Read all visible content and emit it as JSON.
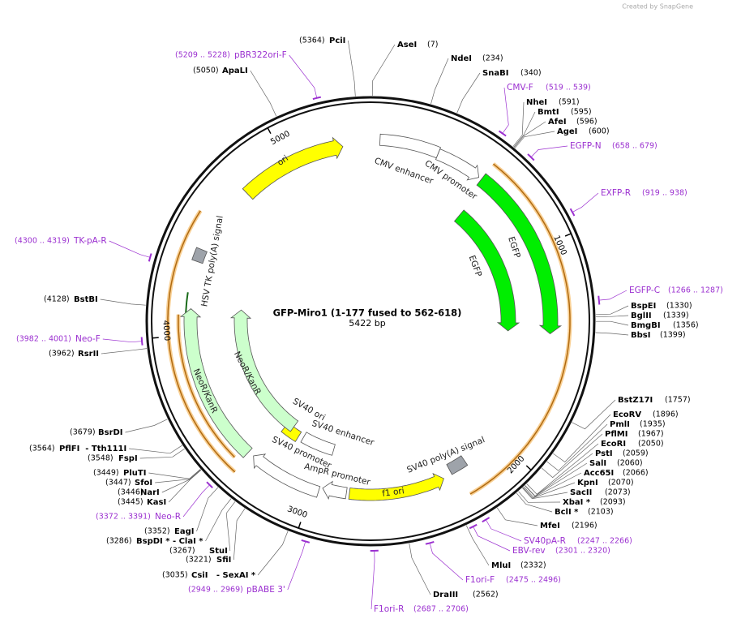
{
  "header": {
    "watermark": "Created by SnapGene"
  },
  "map": {
    "name": "GFP-Miro1 (1-177 fused to 562-618)",
    "length": "5422 bp",
    "ticks": [
      1000,
      2000,
      3000,
      4000,
      5000
    ],
    "features": [
      {
        "label": "ori"
      },
      {
        "label": "CMV enhancer"
      },
      {
        "label": "CMV promoter"
      },
      {
        "label": "EGFP"
      },
      {
        "label": "EGFP"
      },
      {
        "label": "f1 ori"
      },
      {
        "label": "SV40 poly(A) signal"
      },
      {
        "label": "SV40 ori"
      },
      {
        "label": "SV40 enhancer"
      },
      {
        "label": "SV40 promoter"
      },
      {
        "label": "AmpR promoter"
      },
      {
        "label": "HSV TK poly(A) signal"
      },
      {
        "label": "NeoR/KanR"
      },
      {
        "label": "NeoR/KanR"
      }
    ],
    "sites": [
      {
        "name": "PciI",
        "position": "(5364)"
      },
      {
        "name": "AseI",
        "position": "(7)"
      },
      {
        "name": "NdeI",
        "position": "(234)"
      },
      {
        "name": "SnaBI",
        "position": "(340)"
      },
      {
        "name": "NheI",
        "position": "(591)"
      },
      {
        "name": "BmtI",
        "position": "(595)"
      },
      {
        "name": "AfeI",
        "position": "(596)"
      },
      {
        "name": "AgeI",
        "position": "(600)"
      },
      {
        "name": "BspEI",
        "position": "(1330)"
      },
      {
        "name": "BglII",
        "position": "(1339)"
      },
      {
        "name": "BmgBI",
        "position": "(1356)"
      },
      {
        "name": "BbsI",
        "position": "(1399)"
      },
      {
        "name": "BstZ17I",
        "position": "(1757)"
      },
      {
        "name": "EcoRV",
        "position": "(1896)"
      },
      {
        "name": "PmlI",
        "position": "(1935)"
      },
      {
        "name": "PflMI",
        "position": "(1967)"
      },
      {
        "name": "EcoRI",
        "position": "(2050)"
      },
      {
        "name": "PstI",
        "position": "(2059)"
      },
      {
        "name": "SalI",
        "position": "(2060)"
      },
      {
        "name": "Acc65I",
        "position": "(2066)"
      },
      {
        "name": "KpnI",
        "position": "(2070)"
      },
      {
        "name": "SacII",
        "position": "(2073)"
      },
      {
        "name": "XbaI *",
        "position": "(2093)"
      },
      {
        "name": "BclI *",
        "position": "(2103)"
      },
      {
        "name": "MfeI",
        "position": "(2196)"
      },
      {
        "name": "MluI",
        "position": "(2332)"
      },
      {
        "name": "DraIII",
        "position": "(2562)"
      },
      {
        "name": "CsiI   - SexAI *",
        "position": "(3035)"
      },
      {
        "name": "SfiI",
        "position": "(3221)"
      },
      {
        "name": "StuI",
        "position": "(3267)"
      },
      {
        "name": "BspDI * - ClaI *",
        "position": "(3286)"
      },
      {
        "name": "EagI",
        "position": "(3352)"
      },
      {
        "name": "KasI",
        "position": "(3445)"
      },
      {
        "name": "NarI",
        "position": "(3446)"
      },
      {
        "name": "SfoI",
        "position": "(3447)"
      },
      {
        "name": "PluTI",
        "position": "(3449)"
      },
      {
        "name": "FspI",
        "position": "(3548)"
      },
      {
        "name": "PflFI  - Tth111I",
        "position": "(3564)"
      },
      {
        "name": "BsrDI",
        "position": "(3679)"
      },
      {
        "name": "RsrII",
        "position": "(3962)"
      },
      {
        "name": "BstBI",
        "position": "(4128)"
      },
      {
        "name": "ApaLI",
        "position": "(5050)"
      }
    ],
    "primers": [
      {
        "name": "pBR322ori-F",
        "range": "(5209 .. 5228)"
      },
      {
        "name": "CMV-F",
        "range": "(519 .. 539)"
      },
      {
        "name": "EGFP-N",
        "range": "(658 .. 679)"
      },
      {
        "name": "EXFP-R",
        "range": "(919 .. 938)"
      },
      {
        "name": "EGFP-C",
        "range": "(1266 .. 1287)"
      },
      {
        "name": "SV40pA-R",
        "range": "(2247 .. 2266)"
      },
      {
        "name": "EBV-rev",
        "range": "(2301 .. 2320)"
      },
      {
        "name": "F1ori-F",
        "range": "(2475 .. 2496)"
      },
      {
        "name": "F1ori-R",
        "range": "(2687 .. 2706)"
      },
      {
        "name": "pBABE 3'",
        "range": "(2949 .. 2969)"
      },
      {
        "name": "Neo-R",
        "range": "(3372 .. 3391)"
      },
      {
        "name": "Neo-F",
        "range": "(3982 .. 4001)"
      },
      {
        "name": "TK-pA-R",
        "range": "(4300 .. 4319)"
      }
    ]
  }
}
